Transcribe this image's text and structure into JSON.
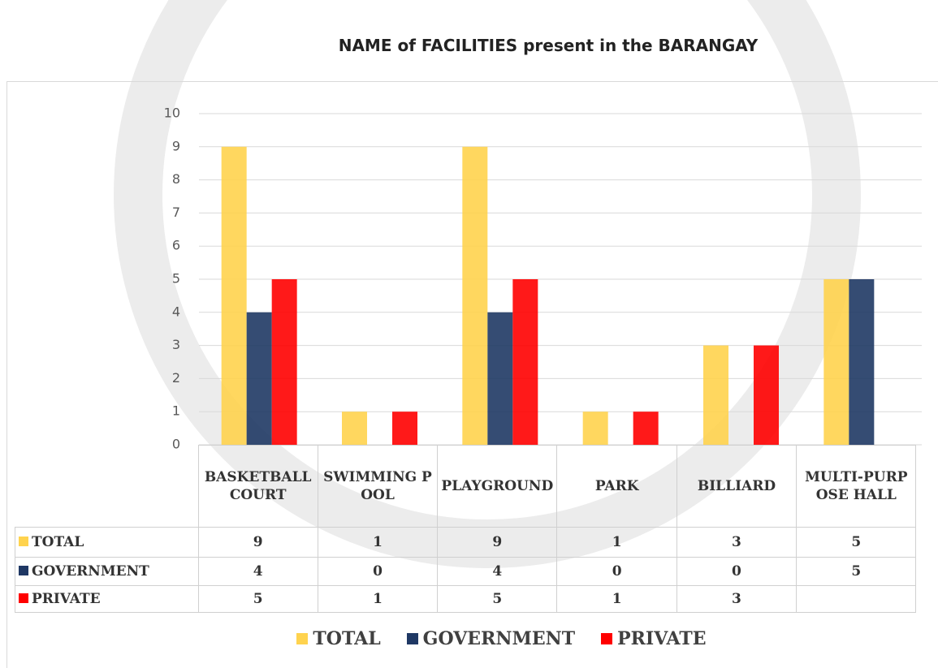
{
  "chart_data": {
    "type": "bar",
    "title": "NAME of FACILITIES present in the BARANGAY",
    "categories": [
      "BASKETBALL COURT",
      "SWIMMING POOL",
      "PLAYGROUND",
      "PARK",
      "BILLIARD",
      "MULTI-PURPOSE HALL"
    ],
    "series": [
      {
        "name": "TOTAL",
        "color": "#ffd34e",
        "values": [
          9,
          1,
          9,
          1,
          3,
          5
        ]
      },
      {
        "name": "GOVERNMENT",
        "color": "#1f3864",
        "values": [
          4,
          0,
          4,
          0,
          0,
          5
        ]
      },
      {
        "name": "PRIVATE",
        "color": "#ff0000",
        "values": [
          5,
          1,
          5,
          1,
          3,
          null
        ]
      }
    ],
    "ylim": [
      0,
      10
    ],
    "yticks": [
      0,
      1,
      2,
      3,
      4,
      5,
      6,
      7,
      8,
      9,
      10
    ],
    "grid": true,
    "legend": "bottom"
  }
}
